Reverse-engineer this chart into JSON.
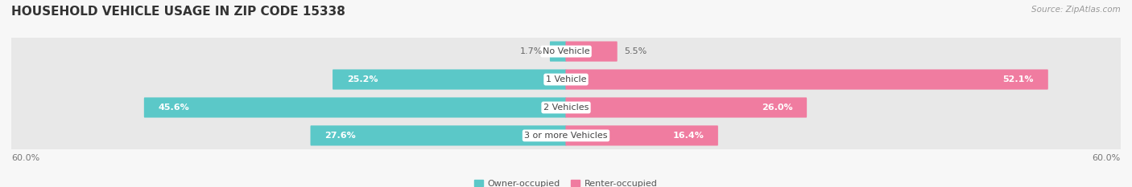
{
  "title": "HOUSEHOLD VEHICLE USAGE IN ZIP CODE 15338",
  "source": "Source: ZipAtlas.com",
  "categories": [
    "No Vehicle",
    "1 Vehicle",
    "2 Vehicles",
    "3 or more Vehicles"
  ],
  "owner_values": [
    1.7,
    25.2,
    45.6,
    27.6
  ],
  "renter_values": [
    5.5,
    52.1,
    26.0,
    16.4
  ],
  "owner_color": "#5BC8C8",
  "renter_color": "#F07CA0",
  "bar_row_bg_light": "#EFEFEF",
  "bar_row_bg_dark": "#E4E4E4",
  "axis_max": 60.0,
  "axis_label_left": "60.0%",
  "axis_label_right": "60.0%",
  "legend_owner": "Owner-occupied",
  "legend_renter": "Renter-occupied",
  "title_fontsize": 11,
  "source_fontsize": 7.5,
  "label_fontsize": 8,
  "category_fontsize": 8,
  "bg_color": "#F7F7F7",
  "bar_row_bg": "#E8E8E8",
  "white_text_threshold_owner": 10.0,
  "white_text_threshold_renter": 10.0
}
